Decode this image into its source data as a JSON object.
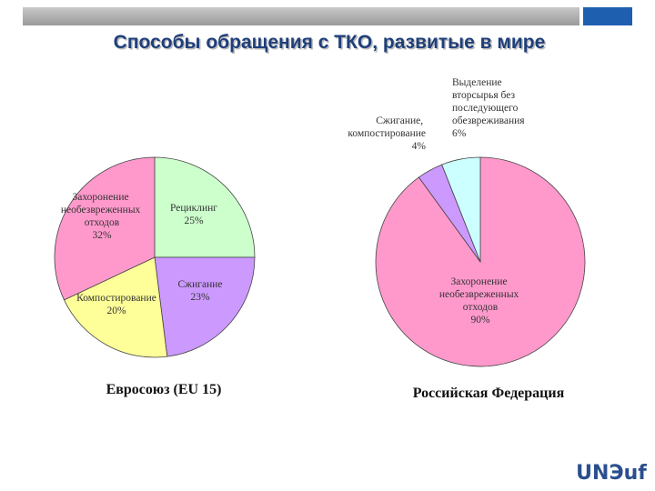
{
  "title": "Способы обращения с ТКО, развитые в мире",
  "logo": "UNЭuf",
  "chart_data": [
    {
      "type": "pie",
      "title": "Евросоюз (EU 15)",
      "categories": [
        "Рециклинг",
        "Сжигание",
        "Компостирование",
        "Захоронение необезвреженных отходов"
      ],
      "values": [
        25,
        23,
        20,
        32
      ],
      "value_labels": [
        "25%",
        "23%",
        "20%",
        "32%"
      ],
      "colors": [
        "#ccffcc",
        "#cc99ff",
        "#ffff99",
        "#ff99cc"
      ]
    },
    {
      "type": "pie",
      "title": "Российская Федерация",
      "categories": [
        "Захоронение необезвреженных отходов",
        "Сжигание, компостирование",
        "Выделение вторсырья без последующего обезвреживания"
      ],
      "values": [
        90,
        4,
        6
      ],
      "value_labels": [
        "90%",
        "4%",
        "6%"
      ],
      "colors": [
        "#ff99cc",
        "#cc99ff",
        "#ccffff"
      ]
    }
  ]
}
